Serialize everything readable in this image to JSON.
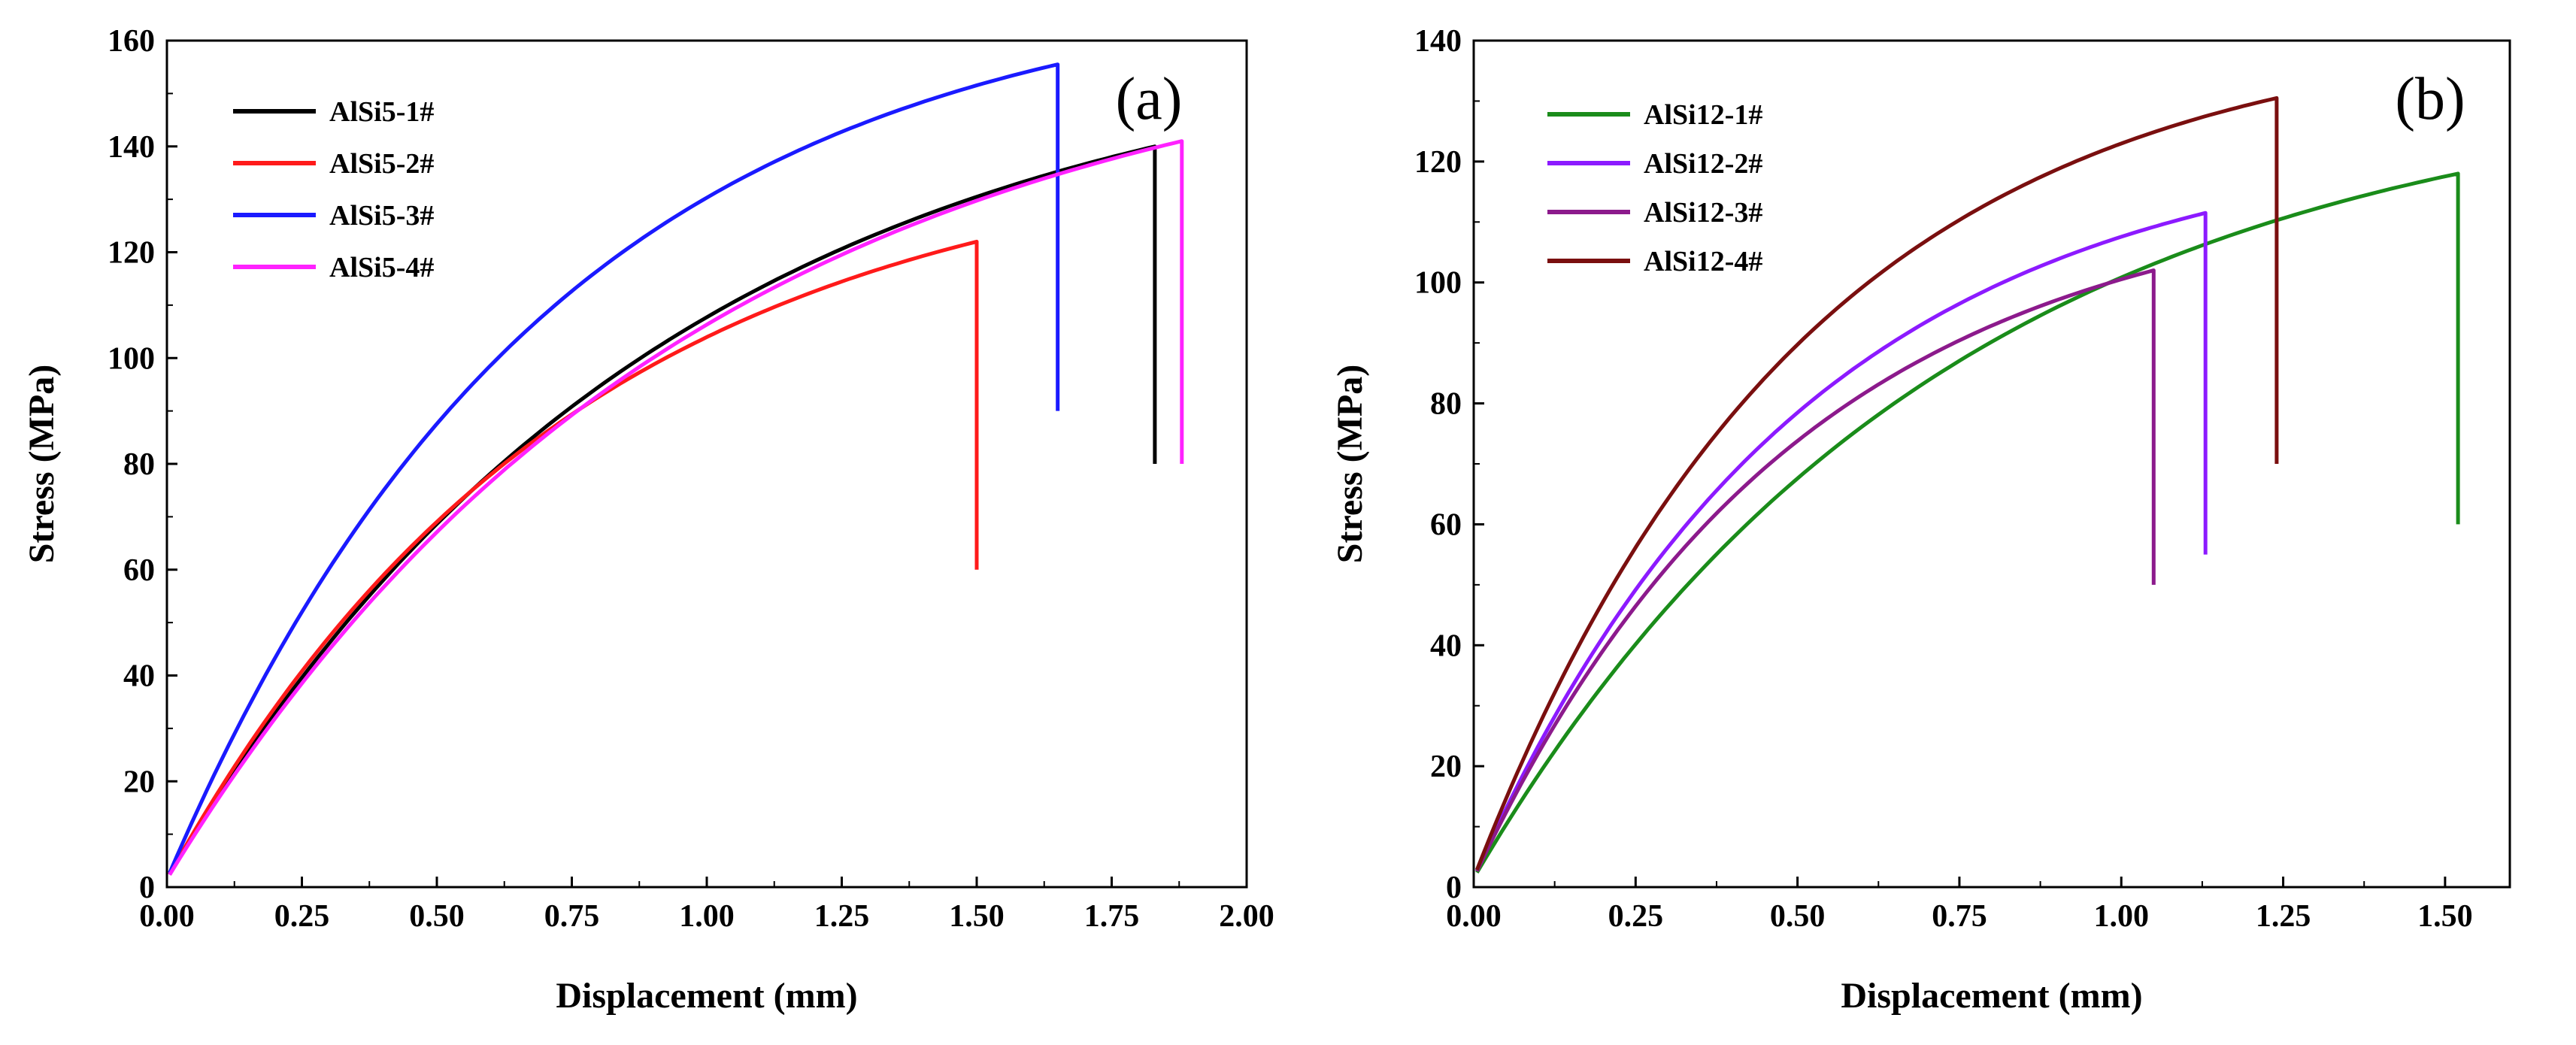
{
  "chart_data": [
    {
      "type": "line",
      "panel_label": "(a)",
      "xlabel": "Displacement (mm)",
      "ylabel": "Stress (MPa)",
      "xlim": [
        0,
        2.0
      ],
      "ylim": [
        0,
        160
      ],
      "xticks": [
        "0.00",
        "0.25",
        "0.50",
        "0.75",
        "1.00",
        "1.25",
        "1.50",
        "1.75",
        "2.00"
      ],
      "yticks": [
        "0",
        "20",
        "40",
        "60",
        "80",
        "100",
        "120",
        "140",
        "160"
      ],
      "legend_position": "top-left",
      "series": [
        {
          "name": "AlSi5-1#",
          "color": "#000000",
          "break_x": 1.83,
          "peak": 140,
          "drop_to": 80,
          "shape": 0.9
        },
        {
          "name": "AlSi5-2#",
          "color": "#ff1a1a",
          "break_x": 1.5,
          "peak": 122,
          "drop_to": 60,
          "shape": 0.9
        },
        {
          "name": "AlSi5-3#",
          "color": "#1a1aff",
          "break_x": 1.65,
          "peak": 155.5,
          "drop_to": 90,
          "shape": 1.05
        },
        {
          "name": "AlSi5-4#",
          "color": "#ff22ff",
          "break_x": 1.88,
          "peak": 141,
          "drop_to": 80,
          "shape": 0.88
        }
      ]
    },
    {
      "type": "line",
      "panel_label": "(b)",
      "xlabel": "Displacement (mm)",
      "ylabel": "Stress (MPa)",
      "xlim": [
        0,
        1.6
      ],
      "ylim": [
        0,
        140
      ],
      "xticks": [
        "0.00",
        "0.25",
        "0.50",
        "0.75",
        "1.00",
        "1.25",
        "1.50"
      ],
      "yticks": [
        "0",
        "20",
        "40",
        "60",
        "80",
        "100",
        "120",
        "140"
      ],
      "legend_position": "top-left",
      "series": [
        {
          "name": "AlSi12-1#",
          "color": "#1a8c1a",
          "break_x": 1.52,
          "peak": 118,
          "drop_to": 60,
          "shape": 0.95
        },
        {
          "name": "AlSi12-2#",
          "color": "#8c1aff",
          "break_x": 1.13,
          "peak": 111.5,
          "drop_to": 55,
          "shape": 1.0
        },
        {
          "name": "AlSi12-3#",
          "color": "#8c1a8c",
          "break_x": 1.05,
          "peak": 102,
          "drop_to": 50,
          "shape": 0.95
        },
        {
          "name": "AlSi12-4#",
          "color": "#7a0f0f",
          "break_x": 1.24,
          "peak": 130.5,
          "drop_to": 70,
          "shape": 1.1
        }
      ]
    }
  ]
}
